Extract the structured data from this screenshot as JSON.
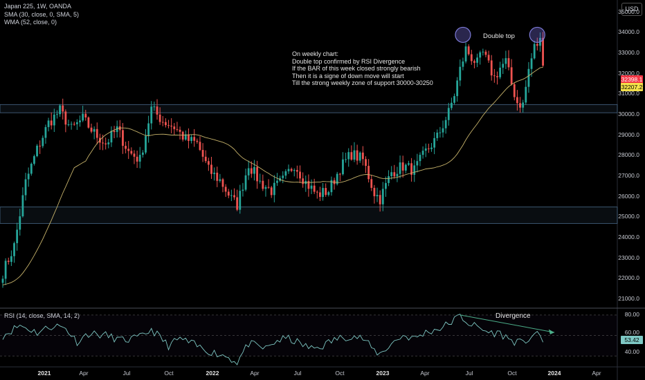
{
  "header": {
    "symbol_line": "Japan 225, 1W, OANDA",
    "sma_line": "SMA (30, close, 0, SMA, 5)",
    "wma_line": "WMA (52, close, 0)",
    "currency_button": "USD"
  },
  "annotations": {
    "double_top": "Double top",
    "note_lines": [
      "On weekly chart:",
      "Double top confirmed by RSI Divergence",
      "If the BAR of this week closed strongly bearish",
      "Then it is a signe of down move will start",
      "Till the strong weekly zone of support 30000-30250"
    ],
    "divergence": "Divergence"
  },
  "price_tags": {
    "last_price": "32398.1",
    "sma_value": "32207.2",
    "last_color": "#f23645",
    "sma_color": "#f5e14a"
  },
  "rsi_panel": {
    "title": "RSI (14, close, SMA, 14, 2)",
    "value_tag": "53.42",
    "levels": [
      "80.00",
      "60.00",
      "40.00"
    ]
  },
  "colors": {
    "up": "#26a69a",
    "down": "#ef5350",
    "sma": "#c7b36b",
    "rsi": "#7ec8c4",
    "zone": "#4a6a8a"
  },
  "chart_data": {
    "type": "candlestick",
    "y_axis_labels": [
      "35000.0",
      "34000.0",
      "33000.0",
      "32000.0",
      "31000.0",
      "30000.0",
      "29000.0",
      "28000.0",
      "27000.0",
      "26000.0",
      "25000.0",
      "24000.0",
      "23000.0",
      "22000.0",
      "21000.0"
    ],
    "x_axis_labels": [
      {
        "label": "2021",
        "bold": true
      },
      {
        "label": "Apr",
        "bold": false
      },
      {
        "label": "Jul",
        "bold": false
      },
      {
        "label": "Oct",
        "bold": false
      },
      {
        "label": "2022",
        "bold": true
      },
      {
        "label": "Apr",
        "bold": false
      },
      {
        "label": "Jul",
        "bold": false
      },
      {
        "label": "Oct",
        "bold": false
      },
      {
        "label": "2023",
        "bold": true
      },
      {
        "label": "Apr",
        "bold": false
      },
      {
        "label": "Jul",
        "bold": false
      },
      {
        "label": "Oct",
        "bold": false
      },
      {
        "label": "2024",
        "bold": true
      },
      {
        "label": "Apr",
        "bold": false
      }
    ],
    "ylim": [
      20600,
      35600
    ],
    "support_zones": [
      [
        30100,
        30500
      ],
      [
        24700,
        25500
      ]
    ],
    "close_keypoints": [
      [
        0,
        22300
      ],
      [
        4,
        23600
      ],
      [
        8,
        26700
      ],
      [
        12,
        28300
      ],
      [
        16,
        29600
      ],
      [
        20,
        30200
      ],
      [
        24,
        29300
      ],
      [
        28,
        29800
      ],
      [
        32,
        29100
      ],
      [
        36,
        28600
      ],
      [
        40,
        29300
      ],
      [
        44,
        28200
      ],
      [
        48,
        27800
      ],
      [
        52,
        30300
      ],
      [
        56,
        29700
      ],
      [
        60,
        29400
      ],
      [
        64,
        28800
      ],
      [
        68,
        28600
      ],
      [
        72,
        27300
      ],
      [
        76,
        26800
      ],
      [
        80,
        25900
      ],
      [
        82,
        25600
      ],
      [
        86,
        27600
      ],
      [
        90,
        26700
      ],
      [
        94,
        26300
      ],
      [
        98,
        26800
      ],
      [
        102,
        27600
      ],
      [
        106,
        26700
      ],
      [
        110,
        26100
      ],
      [
        114,
        26300
      ],
      [
        118,
        27400
      ],
      [
        122,
        28100
      ],
      [
        126,
        27800
      ],
      [
        130,
        26200
      ],
      [
        132,
        25900
      ],
      [
        136,
        27200
      ],
      [
        140,
        27500
      ],
      [
        144,
        27300
      ],
      [
        148,
        28200
      ],
      [
        152,
        28900
      ],
      [
        156,
        30100
      ],
      [
        158,
        31000
      ],
      [
        160,
        32200
      ],
      [
        162,
        33200
      ],
      [
        164,
        32800
      ],
      [
        166,
        32500
      ],
      [
        168,
        33000
      ],
      [
        170,
        32400
      ],
      [
        172,
        31800
      ],
      [
        174,
        32300
      ],
      [
        176,
        32600
      ],
      [
        178,
        31500
      ],
      [
        180,
        30600
      ],
      [
        182,
        30500
      ],
      [
        184,
        32200
      ],
      [
        186,
        33300
      ],
      [
        188,
        33600
      ],
      [
        189,
        32400
      ]
    ],
    "rsi_keypoints": [
      [
        0,
        60
      ],
      [
        6,
        70
      ],
      [
        12,
        63
      ],
      [
        18,
        70
      ],
      [
        22,
        67
      ],
      [
        26,
        54
      ],
      [
        30,
        62
      ],
      [
        36,
        60
      ],
      [
        42,
        55
      ],
      [
        48,
        58
      ],
      [
        52,
        66
      ],
      [
        58,
        50
      ],
      [
        62,
        57
      ],
      [
        66,
        52
      ],
      [
        70,
        47
      ],
      [
        74,
        43
      ],
      [
        78,
        40
      ],
      [
        80,
        37
      ],
      [
        82,
        34
      ],
      [
        86,
        52
      ],
      [
        92,
        47
      ],
      [
        96,
        55
      ],
      [
        100,
        57
      ],
      [
        104,
        52
      ],
      [
        108,
        47
      ],
      [
        112,
        50
      ],
      [
        116,
        56
      ],
      [
        122,
        60
      ],
      [
        126,
        57
      ],
      [
        130,
        45
      ],
      [
        132,
        42
      ],
      [
        136,
        52
      ],
      [
        140,
        60
      ],
      [
        144,
        57
      ],
      [
        148,
        63
      ],
      [
        154,
        68
      ],
      [
        160,
        79
      ],
      [
        163,
        72
      ],
      [
        166,
        68
      ],
      [
        170,
        63
      ],
      [
        174,
        62
      ],
      [
        178,
        55
      ],
      [
        182,
        52
      ],
      [
        186,
        62
      ],
      [
        188,
        58
      ],
      [
        189,
        53.42
      ]
    ],
    "rsi_ylim": [
      30,
      86
    ]
  }
}
